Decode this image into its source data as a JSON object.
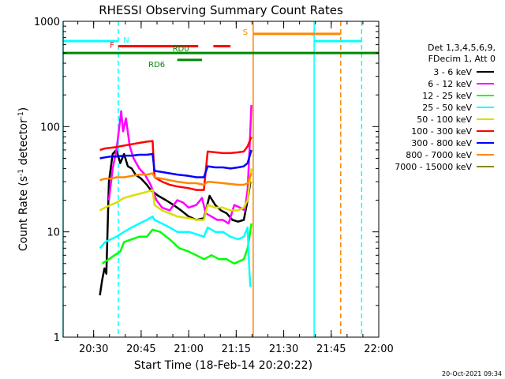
{
  "chart_data": {
    "type": "line",
    "title": "RHESSI Observing Summary Count Rates",
    "xlabel": "Start Time (18-Feb-14 20:20:22)",
    "ylabel_prefix": "Count Rate (s",
    "ylabel_mid": " detector",
    "ylabel_suffix": ")",
    "ylabel_sup": "-1",
    "y_scale": "log",
    "ylim": [
      1,
      1000
    ],
    "y_ticks": [
      {
        "v": 1,
        "label": "1"
      },
      {
        "v": 10,
        "label": "10"
      },
      {
        "v": 100,
        "label": "100"
      },
      {
        "v": 1000,
        "label": "1000"
      }
    ],
    "xlim": [
      20.3394,
      22.0
    ],
    "x_ticks": [
      {
        "v": 20.5,
        "label": "20:30"
      },
      {
        "v": 20.75,
        "label": "20:45"
      },
      {
        "v": 21.0,
        "label": "21:00"
      },
      {
        "v": 21.25,
        "label": "21:15"
      },
      {
        "v": 21.5,
        "label": "21:30"
      },
      {
        "v": 21.75,
        "label": "21:45"
      },
      {
        "v": 22.0,
        "label": "22:00"
      }
    ],
    "x_minor_step": 0.08333,
    "timestamp": "20-Oct-2021 09:34",
    "legend": {
      "header1": "Det 1,3,4,5,6,9,",
      "header2": "FDecim 1, Att 0",
      "entries": [
        {
          "label": "3 - 6 keV",
          "color": "#000000"
        },
        {
          "label": "6 - 12 keV",
          "color": "#ff00ff"
        },
        {
          "label": "12 - 25 keV",
          "color": "#00ff00"
        },
        {
          "label": "25 - 50 keV",
          "color": "#00ffff"
        },
        {
          "label": "50 - 100 keV",
          "color": "#dddd00"
        },
        {
          "label": "100 - 300 keV",
          "color": "#ff0000"
        },
        {
          "label": "300 - 800 keV",
          "color": "#0000ff"
        },
        {
          "label": "800 - 7000 keV",
          "color": "#ff8800"
        },
        {
          "label": "7000 - 15000 keV",
          "color": "#888800"
        }
      ]
    },
    "series": [
      {
        "name": "3 - 6 keV",
        "color": "#000000",
        "points": [
          [
            20.533,
            2.5
          ],
          [
            20.545,
            3.5
          ],
          [
            20.557,
            4.5
          ],
          [
            20.567,
            4
          ],
          [
            20.58,
            30
          ],
          [
            20.6,
            55
          ],
          [
            20.62,
            60
          ],
          [
            20.64,
            45
          ],
          [
            20.66,
            55
          ],
          [
            20.68,
            42
          ],
          [
            20.7,
            40
          ],
          [
            20.72,
            35
          ],
          [
            20.75,
            32
          ],
          [
            20.78,
            28
          ],
          [
            20.8,
            25
          ],
          [
            20.84,
            22
          ],
          [
            20.88,
            20
          ],
          [
            20.92,
            18
          ],
          [
            20.96,
            16
          ],
          [
            21.0,
            14
          ],
          [
            21.04,
            13
          ],
          [
            21.08,
            13.5
          ],
          [
            21.11,
            22
          ],
          [
            21.14,
            18
          ],
          [
            21.17,
            16
          ],
          [
            21.2,
            15
          ],
          [
            21.23,
            13
          ],
          [
            21.26,
            12.5
          ],
          [
            21.29,
            13
          ],
          [
            21.31,
            20
          ],
          [
            21.325,
            30
          ]
        ]
      },
      {
        "name": "6 - 12 keV",
        "color": "#ff00ff",
        "points": [
          [
            20.58,
            20
          ],
          [
            20.6,
            40
          ],
          [
            20.62,
            60
          ],
          [
            20.645,
            140
          ],
          [
            20.655,
            90
          ],
          [
            20.67,
            120
          ],
          [
            20.69,
            65
          ],
          [
            20.71,
            50
          ],
          [
            20.74,
            40
          ],
          [
            20.77,
            35
          ],
          [
            20.8,
            28
          ],
          [
            20.83,
            20
          ],
          [
            20.86,
            17
          ],
          [
            20.9,
            16
          ],
          [
            20.94,
            20
          ],
          [
            20.97,
            19
          ],
          [
            21.0,
            17
          ],
          [
            21.04,
            18
          ],
          [
            21.07,
            21
          ],
          [
            21.09,
            15
          ],
          [
            21.12,
            14
          ],
          [
            21.15,
            13
          ],
          [
            21.18,
            13
          ],
          [
            21.21,
            12
          ],
          [
            21.24,
            18
          ],
          [
            21.27,
            17
          ],
          [
            21.295,
            16
          ],
          [
            21.31,
            25
          ],
          [
            21.32,
            60
          ],
          [
            21.33,
            160
          ]
        ]
      },
      {
        "name": "12 - 25 keV",
        "color": "#00ff00",
        "points": [
          [
            20.545,
            5
          ],
          [
            20.58,
            5.5
          ],
          [
            20.61,
            6
          ],
          [
            20.64,
            6.5
          ],
          [
            20.66,
            8
          ],
          [
            20.7,
            8.5
          ],
          [
            20.74,
            9
          ],
          [
            20.78,
            9
          ],
          [
            20.81,
            10.5
          ],
          [
            20.85,
            10
          ],
          [
            20.9,
            8.5
          ],
          [
            20.95,
            7
          ],
          [
            21.0,
            6.5
          ],
          [
            21.04,
            6
          ],
          [
            21.08,
            5.5
          ],
          [
            21.12,
            6
          ],
          [
            21.16,
            5.5
          ],
          [
            21.2,
            5.5
          ],
          [
            21.24,
            5
          ],
          [
            21.29,
            5.5
          ],
          [
            21.31,
            7
          ],
          [
            21.32,
            9
          ],
          [
            21.33,
            12
          ]
        ]
      },
      {
        "name": "25 - 50 keV",
        "color": "#00ffff",
        "points": [
          [
            20.533,
            7
          ],
          [
            20.56,
            8
          ],
          [
            20.59,
            8.5
          ],
          [
            20.62,
            9
          ],
          [
            20.66,
            10
          ],
          [
            20.7,
            11
          ],
          [
            20.74,
            12
          ],
          [
            20.78,
            13
          ],
          [
            20.81,
            14
          ],
          [
            20.82,
            13
          ],
          [
            20.86,
            12
          ],
          [
            20.9,
            11
          ],
          [
            20.94,
            10
          ],
          [
            21.0,
            10
          ],
          [
            21.04,
            9.5
          ],
          [
            21.08,
            9
          ],
          [
            21.1,
            11
          ],
          [
            21.14,
            10
          ],
          [
            21.18,
            10
          ],
          [
            21.22,
            9
          ],
          [
            21.26,
            8.5
          ],
          [
            21.29,
            9
          ],
          [
            21.31,
            11
          ],
          [
            21.32,
            4
          ],
          [
            21.325,
            3
          ]
        ]
      },
      {
        "name": "50 - 100 keV",
        "color": "#dddd00",
        "points": [
          [
            20.533,
            16
          ],
          [
            20.56,
            17
          ],
          [
            20.59,
            18
          ],
          [
            20.62,
            19
          ],
          [
            20.66,
            21
          ],
          [
            20.7,
            22
          ],
          [
            20.74,
            23
          ],
          [
            20.78,
            24
          ],
          [
            20.81,
            25
          ],
          [
            20.82,
            18
          ],
          [
            20.86,
            16
          ],
          [
            20.9,
            15
          ],
          [
            20.94,
            14
          ],
          [
            21.0,
            13.5
          ],
          [
            21.04,
            13
          ],
          [
            21.08,
            13
          ],
          [
            21.1,
            18
          ],
          [
            21.14,
            17
          ],
          [
            21.18,
            17
          ],
          [
            21.22,
            16
          ],
          [
            21.26,
            16
          ],
          [
            21.29,
            17
          ],
          [
            21.31,
            20
          ],
          [
            21.33,
            40
          ]
        ]
      },
      {
        "name": "100 - 300 keV",
        "color": "#ff0000",
        "points": [
          [
            20.533,
            60
          ],
          [
            20.56,
            62
          ],
          [
            20.59,
            63
          ],
          [
            20.62,
            64
          ],
          [
            20.66,
            66
          ],
          [
            20.7,
            68
          ],
          [
            20.74,
            70
          ],
          [
            20.78,
            72
          ],
          [
            20.81,
            73
          ],
          [
            20.82,
            33
          ],
          [
            20.86,
            30
          ],
          [
            20.9,
            28
          ],
          [
            20.94,
            27
          ],
          [
            21.0,
            26
          ],
          [
            21.04,
            25
          ],
          [
            21.08,
            25
          ],
          [
            21.1,
            58
          ],
          [
            21.14,
            57
          ],
          [
            21.18,
            56
          ],
          [
            21.22,
            56
          ],
          [
            21.26,
            57
          ],
          [
            21.29,
            58
          ],
          [
            21.31,
            65
          ],
          [
            21.33,
            80
          ]
        ]
      },
      {
        "name": "300 - 800 keV",
        "color": "#0000ff",
        "points": [
          [
            20.533,
            50
          ],
          [
            20.56,
            51
          ],
          [
            20.59,
            52
          ],
          [
            20.62,
            52
          ],
          [
            20.66,
            53
          ],
          [
            20.7,
            53
          ],
          [
            20.74,
            54
          ],
          [
            20.78,
            54
          ],
          [
            20.81,
            55
          ],
          [
            20.82,
            38
          ],
          [
            20.86,
            37
          ],
          [
            20.9,
            36
          ],
          [
            20.94,
            35
          ],
          [
            21.0,
            34
          ],
          [
            21.04,
            33
          ],
          [
            21.08,
            33
          ],
          [
            21.1,
            42
          ],
          [
            21.14,
            41
          ],
          [
            21.18,
            41
          ],
          [
            21.22,
            40
          ],
          [
            21.26,
            41
          ],
          [
            21.29,
            42
          ],
          [
            21.31,
            45
          ],
          [
            21.33,
            60
          ]
        ]
      },
      {
        "name": "800 - 7000 keV",
        "color": "#ff8800",
        "points": [
          [
            20.533,
            31
          ],
          [
            20.56,
            32
          ],
          [
            20.59,
            32
          ],
          [
            20.62,
            33
          ],
          [
            20.66,
            33
          ],
          [
            20.7,
            34
          ],
          [
            20.74,
            35
          ],
          [
            20.78,
            35
          ],
          [
            20.81,
            36
          ],
          [
            20.82,
            33
          ],
          [
            20.86,
            32
          ],
          [
            20.9,
            31
          ],
          [
            20.94,
            30
          ],
          [
            21.0,
            29
          ],
          [
            21.04,
            29
          ],
          [
            21.08,
            28
          ],
          [
            21.1,
            30
          ],
          [
            21.14,
            29.5
          ],
          [
            21.18,
            29
          ],
          [
            21.22,
            28.5
          ],
          [
            21.26,
            28
          ],
          [
            21.29,
            28
          ],
          [
            21.31,
            29
          ],
          [
            21.33,
            36
          ]
        ]
      }
    ],
    "annotations": [
      {
        "label": "N",
        "color": "#00ffff",
        "bars": [
          {
            "y": 650,
            "x0": 20.3394,
            "x1": 20.63
          },
          {
            "y": 650,
            "x0": 21.66,
            "x1": 21.91
          }
        ]
      },
      {
        "label": "F",
        "color": "#ff0000",
        "bars": [
          {
            "y": 580,
            "x0": 20.63,
            "x1": 21.05
          },
          {
            "y": 580,
            "x0": 21.13,
            "x1": 21.22
          }
        ]
      },
      {
        "label": "RD0",
        "color": "#008800",
        "bars": [
          {
            "y": 500,
            "x0": 20.3394,
            "x1": 22.0
          }
        ]
      },
      {
        "label": "RD6",
        "color": "#008800",
        "bars": [
          {
            "y": 430,
            "x0": 20.94,
            "x1": 21.07
          }
        ]
      },
      {
        "label": "S",
        "color": "#ff8800",
        "bars": [
          {
            "y": 760,
            "x0": 21.3394,
            "x1": 21.8
          }
        ]
      }
    ],
    "vlines": [
      {
        "x": 20.3394,
        "color": "#00ffff",
        "style": "solid"
      },
      {
        "x": 20.63,
        "color": "#00ffff",
        "style": "dashed"
      },
      {
        "x": 21.3394,
        "color": "#ff8800",
        "style": "solid"
      },
      {
        "x": 21.66,
        "color": "#00ffff",
        "style": "solid"
      },
      {
        "x": 21.8,
        "color": "#ff8800",
        "style": "dashed"
      },
      {
        "x": 21.91,
        "color": "#00ffff",
        "style": "dashed"
      }
    ]
  }
}
